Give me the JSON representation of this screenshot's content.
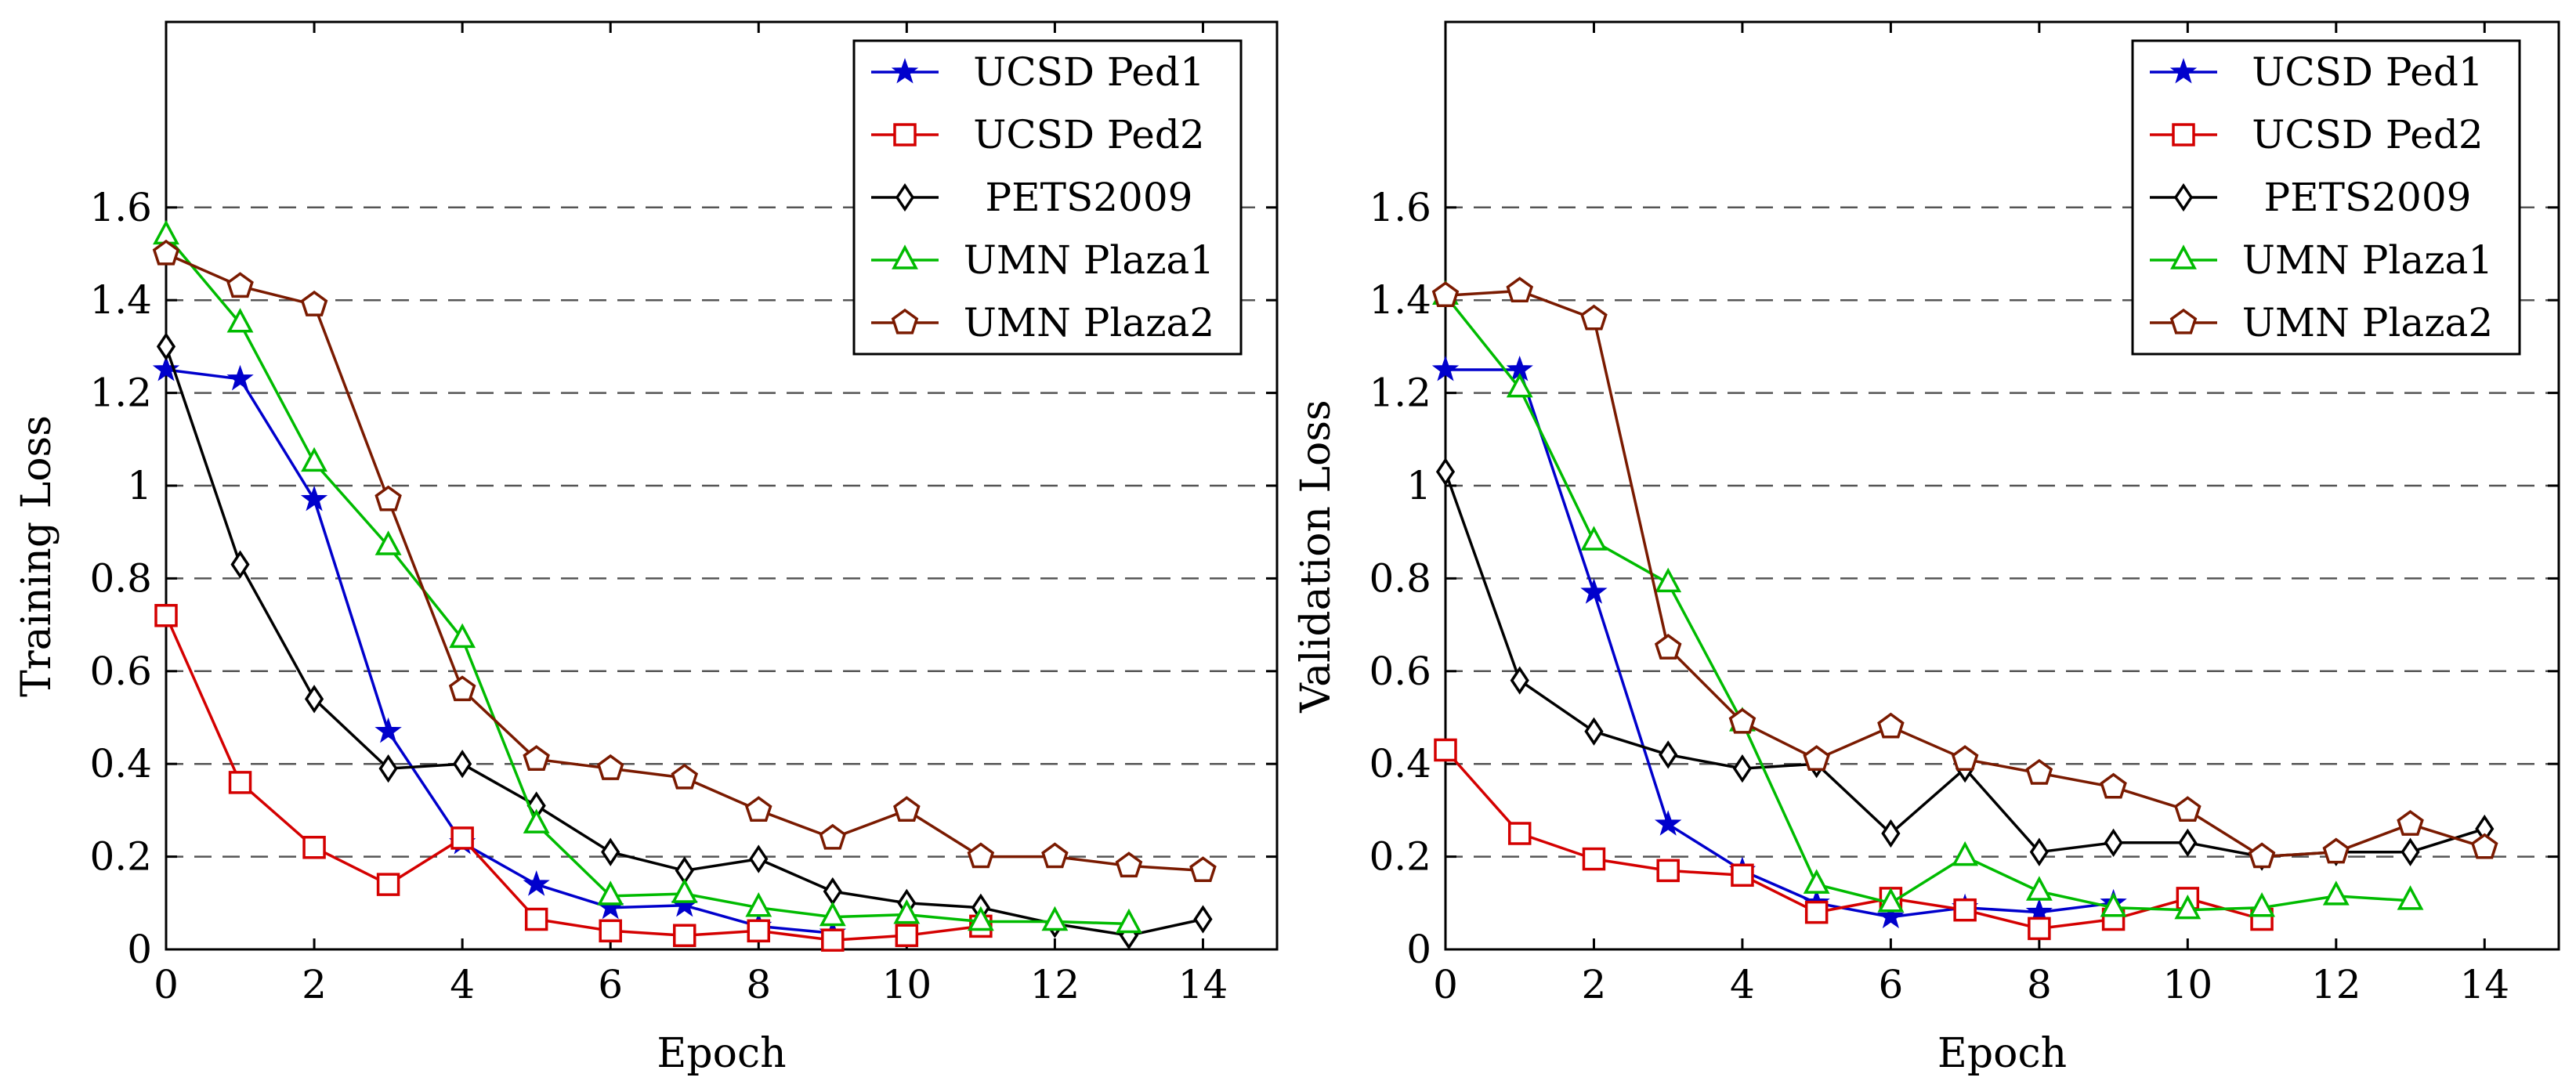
{
  "figure": {
    "charts": [
      "chart-left",
      "chart-right"
    ]
  },
  "chart_data": [
    {
      "id": "training",
      "type": "line",
      "title": "",
      "xlabel": "Epoch",
      "ylabel": "Training Loss",
      "xlim": [
        0,
        15
      ],
      "ylim": [
        0,
        2
      ],
      "xticks": [
        0,
        2,
        4,
        6,
        8,
        10,
        12,
        14
      ],
      "yticks": [
        0,
        0.2,
        0.4,
        0.6,
        0.8,
        1,
        1.2,
        1.4,
        1.6
      ],
      "ytick_labels": [
        "0",
        "0.2",
        "0.4",
        "0.6",
        "0.8",
        "1",
        "1.2",
        "1.4",
        "1.6"
      ],
      "grid": "horizontal-dashed",
      "legend_position": "top-right",
      "series": [
        {
          "name": "UCSD Ped1",
          "color": "#0000cc",
          "marker": "star",
          "x": [
            0,
            1,
            2,
            3,
            4,
            5,
            6,
            7,
            8,
            9
          ],
          "values": [
            1.25,
            1.23,
            0.97,
            0.47,
            0.23,
            0.14,
            0.09,
            0.095,
            0.05,
            0.035
          ]
        },
        {
          "name": "UCSD Ped2",
          "color": "#d40000",
          "marker": "square",
          "x": [
            0,
            1,
            2,
            3,
            4,
            5,
            6,
            7,
            8,
            9,
            10,
            11
          ],
          "values": [
            0.72,
            0.36,
            0.22,
            0.14,
            0.24,
            0.065,
            0.04,
            0.03,
            0.04,
            0.02,
            0.03,
            0.05
          ]
        },
        {
          "name": "PETS2009",
          "color": "#000000",
          "marker": "diamond",
          "x": [
            0,
            1,
            2,
            3,
            4,
            5,
            6,
            7,
            8,
            9,
            10,
            11,
            12,
            13,
            14
          ],
          "values": [
            1.3,
            0.83,
            0.54,
            0.39,
            0.4,
            0.31,
            0.21,
            0.17,
            0.195,
            0.125,
            0.1,
            0.09,
            0.055,
            0.03,
            0.065
          ]
        },
        {
          "name": "UMN Plaza1",
          "color": "#00bb00",
          "marker": "triangle",
          "x": [
            0,
            1,
            2,
            3,
            4,
            5,
            6,
            7,
            8,
            9,
            10,
            11,
            12,
            13
          ],
          "values": [
            1.54,
            1.35,
            1.05,
            0.87,
            0.67,
            0.27,
            0.115,
            0.12,
            0.09,
            0.07,
            0.075,
            0.06,
            0.06,
            0.055
          ]
        },
        {
          "name": "UMN Plaza2",
          "color": "#7a1a00",
          "marker": "pentagon",
          "x": [
            0,
            1,
            2,
            3,
            4,
            5,
            6,
            7,
            8,
            9,
            10,
            11,
            12,
            13,
            14
          ],
          "values": [
            1.5,
            1.43,
            1.39,
            0.97,
            0.56,
            0.41,
            0.39,
            0.37,
            0.3,
            0.24,
            0.3,
            0.2,
            0.2,
            0.18,
            0.17
          ]
        }
      ]
    },
    {
      "id": "validation",
      "type": "line",
      "title": "",
      "xlabel": "Epoch",
      "ylabel": "Validation Loss",
      "xlim": [
        0,
        15
      ],
      "ylim": [
        0,
        2
      ],
      "xticks": [
        0,
        2,
        4,
        6,
        8,
        10,
        12,
        14
      ],
      "yticks": [
        0,
        0.2,
        0.4,
        0.6,
        0.8,
        1,
        1.2,
        1.4,
        1.6
      ],
      "ytick_labels": [
        "0",
        "0.2",
        "0.4",
        "0.6",
        "0.8",
        "1",
        "1.2",
        "1.4",
        "1.6"
      ],
      "grid": "horizontal-dashed",
      "legend_position": "top-right",
      "series": [
        {
          "name": "UCSD Ped1",
          "color": "#0000cc",
          "marker": "star",
          "x": [
            0,
            1,
            2,
            3,
            4,
            5,
            6,
            7,
            8,
            9
          ],
          "values": [
            1.25,
            1.25,
            0.77,
            0.27,
            0.17,
            0.1,
            0.07,
            0.09,
            0.08,
            0.1
          ]
        },
        {
          "name": "UCSD Ped2",
          "color": "#d40000",
          "marker": "square",
          "x": [
            0,
            1,
            2,
            3,
            4,
            5,
            6,
            7,
            8,
            9,
            10,
            11
          ],
          "values": [
            0.43,
            0.25,
            0.195,
            0.17,
            0.16,
            0.08,
            0.11,
            0.085,
            0.045,
            0.065,
            0.11,
            0.065
          ]
        },
        {
          "name": "PETS2009",
          "color": "#000000",
          "marker": "diamond",
          "x": [
            0,
            1,
            2,
            3,
            4,
            5,
            6,
            7,
            8,
            9,
            10,
            11,
            12,
            13,
            14
          ],
          "values": [
            1.03,
            0.58,
            0.47,
            0.42,
            0.39,
            0.4,
            0.25,
            0.39,
            0.21,
            0.23,
            0.23,
            0.2,
            0.21,
            0.21,
            0.26
          ]
        },
        {
          "name": "UMN Plaza1",
          "color": "#00bb00",
          "marker": "triangle",
          "x": [
            0,
            1,
            2,
            3,
            4,
            5,
            6,
            7,
            8,
            9,
            10,
            11,
            12,
            13
          ],
          "values": [
            1.41,
            1.21,
            0.88,
            0.79,
            0.49,
            0.14,
            0.1,
            0.2,
            0.125,
            0.09,
            0.085,
            0.09,
            0.115,
            0.105
          ]
        },
        {
          "name": "UMN Plaza2",
          "color": "#7a1a00",
          "marker": "pentagon",
          "x": [
            0,
            1,
            2,
            3,
            4,
            5,
            6,
            7,
            8,
            9,
            10,
            11,
            12,
            13,
            14
          ],
          "values": [
            1.41,
            1.42,
            1.36,
            0.65,
            0.49,
            0.41,
            0.48,
            0.41,
            0.38,
            0.35,
            0.3,
            0.2,
            0.21,
            0.27,
            0.22
          ]
        }
      ]
    }
  ]
}
